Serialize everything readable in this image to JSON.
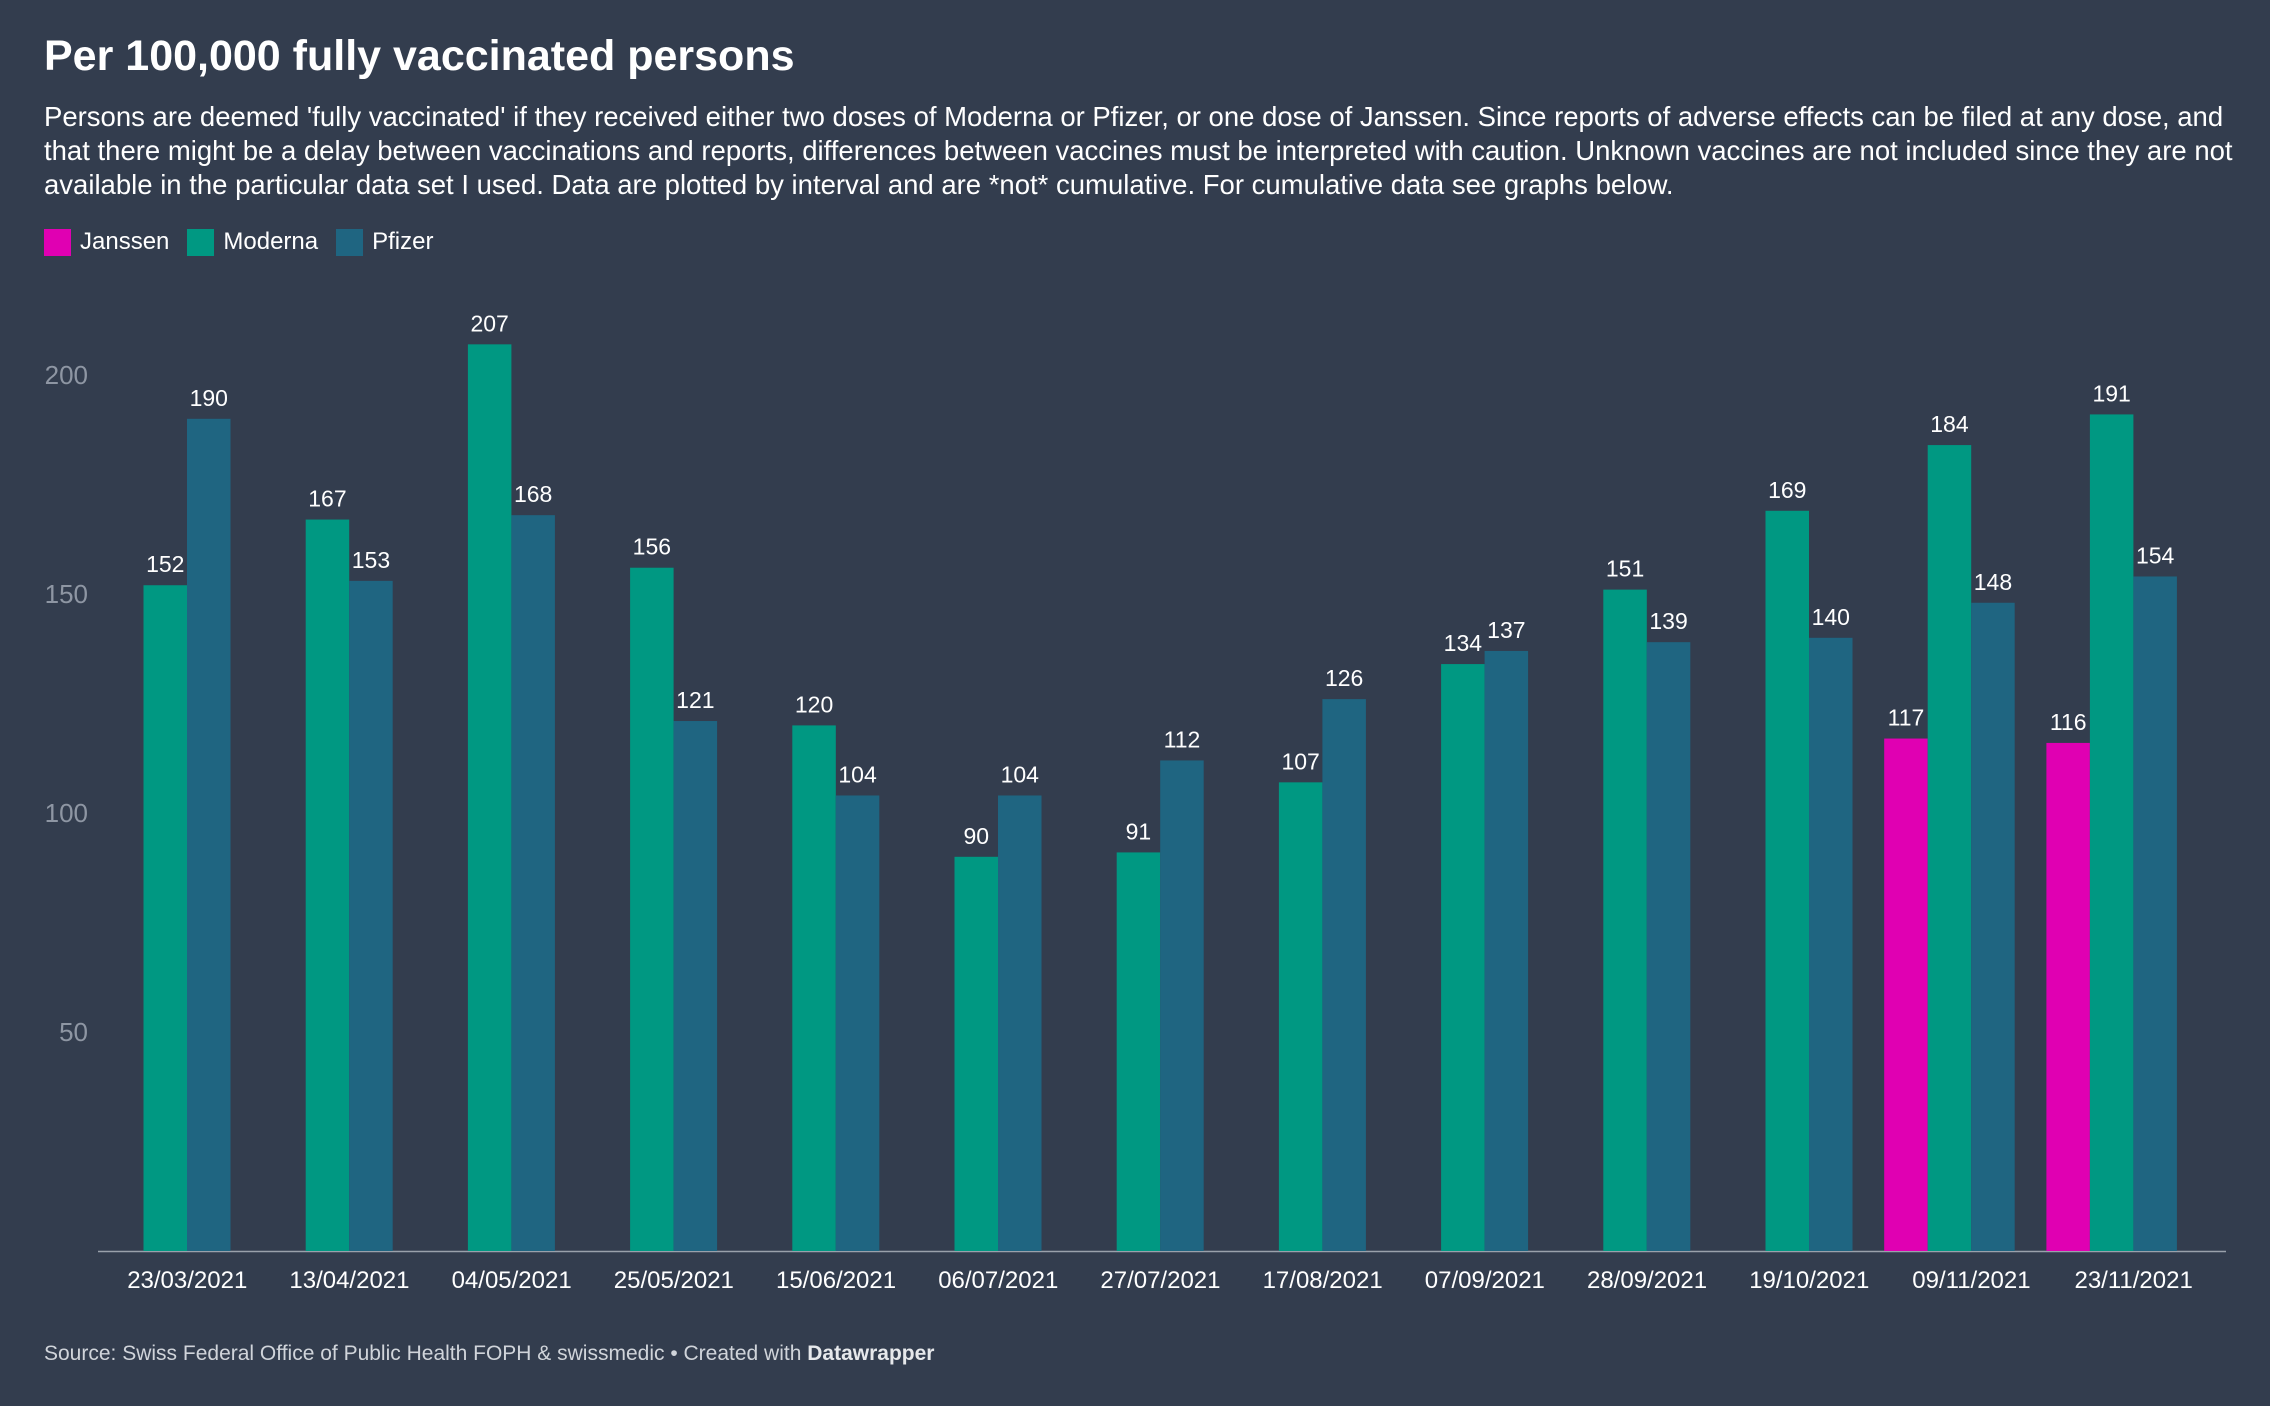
{
  "title": "Per 100,000 fully vaccinated persons",
  "subtitle": "Persons are deemed 'fully vaccinated' if they received either two doses of Moderna or Pfizer, or one dose of Janssen. Since reports of adverse effects can be filed at any dose, and that there might be a delay between vaccinations and reports, differences between vaccines must be interpreted with caution. Unknown vaccines are not included since they are not available in the particular data set I used. Data are plotted by interval and are *not* cumulative. For cumulative data see graphs below.",
  "legend": [
    {
      "name": "Janssen",
      "color": "#e000b2"
    },
    {
      "name": "Moderna",
      "color": "#009882"
    },
    {
      "name": "Pfizer",
      "color": "#1f6581"
    }
  ],
  "footer": {
    "source_text": "Source: Swiss Federal Office of Public Health FOPH & swissmedic • Created with ",
    "brand": "Datawrapper"
  },
  "chart_data": {
    "type": "bar",
    "title": "Per 100,000 fully vaccinated persons",
    "xlabel": "",
    "ylabel": "",
    "ylim": [
      0,
      215
    ],
    "yticks": [
      50,
      100,
      150,
      200
    ],
    "grid": false,
    "legend_position": "top-left",
    "categories": [
      "23/03/2021",
      "13/04/2021",
      "04/05/2021",
      "25/05/2021",
      "15/06/2021",
      "06/07/2021",
      "27/07/2021",
      "17/08/2021",
      "07/09/2021",
      "28/09/2021",
      "19/10/2021",
      "09/11/2021",
      "23/11/2021"
    ],
    "series": [
      {
        "name": "Janssen",
        "color": "#e000b2",
        "values": [
          null,
          null,
          null,
          null,
          null,
          null,
          null,
          null,
          null,
          null,
          null,
          117,
          116
        ]
      },
      {
        "name": "Moderna",
        "color": "#009882",
        "values": [
          152,
          167,
          207,
          156,
          120,
          90,
          91,
          107,
          134,
          151,
          169,
          184,
          191
        ]
      },
      {
        "name": "Pfizer",
        "color": "#1f6581",
        "values": [
          190,
          153,
          168,
          121,
          104,
          104,
          112,
          126,
          137,
          139,
          140,
          148,
          154
        ]
      }
    ]
  }
}
